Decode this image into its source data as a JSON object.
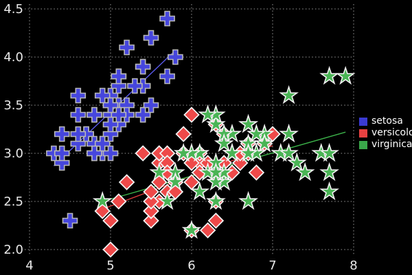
{
  "chart_data": {
    "type": "scatter",
    "title": "",
    "xlabel": "",
    "ylabel": "",
    "xlim": [
      4,
      8
    ],
    "ylim": [
      2.0,
      4.5
    ],
    "x_ticks": [
      4,
      5,
      6,
      7,
      8
    ],
    "x_tick_labels": [
      "4",
      "5",
      "6",
      "7",
      "8"
    ],
    "y_ticks": [
      2.0,
      2.5,
      3.0,
      3.5,
      4.0,
      4.5
    ],
    "y_tick_labels": [
      "2.0",
      "2.5",
      "3.0",
      "3.5",
      "4.0",
      "4.5"
    ],
    "grid": "dotted",
    "grid_color": "#9a9a9a",
    "background": "#000000",
    "tick_label_color": "#e8e8e8",
    "legend_position": "right",
    "series": [
      {
        "name": "setosa",
        "marker": "plus",
        "color": "#4646dd",
        "stroke": "#b8b8b8",
        "legend_color": "#3a3ad1",
        "points": [
          [
            5.1,
            3.5
          ],
          [
            4.9,
            3.0
          ],
          [
            4.7,
            3.2
          ],
          [
            4.6,
            3.1
          ],
          [
            5.0,
            3.6
          ],
          [
            5.4,
            3.9
          ],
          [
            4.6,
            3.4
          ],
          [
            5.0,
            3.4
          ],
          [
            4.4,
            2.9
          ],
          [
            4.9,
            3.1
          ],
          [
            5.4,
            3.7
          ],
          [
            4.8,
            3.4
          ],
          [
            4.8,
            3.0
          ],
          [
            4.3,
            3.0
          ],
          [
            5.8,
            4.0
          ],
          [
            5.7,
            4.4
          ],
          [
            5.4,
            3.9
          ],
          [
            5.1,
            3.5
          ],
          [
            5.7,
            3.8
          ],
          [
            5.1,
            3.8
          ],
          [
            5.4,
            3.4
          ],
          [
            5.1,
            3.7
          ],
          [
            4.6,
            3.6
          ],
          [
            5.1,
            3.3
          ],
          [
            4.8,
            3.4
          ],
          [
            5.0,
            3.0
          ],
          [
            5.0,
            3.4
          ],
          [
            5.2,
            3.5
          ],
          [
            5.2,
            3.4
          ],
          [
            4.7,
            3.2
          ],
          [
            4.8,
            3.1
          ],
          [
            5.4,
            3.4
          ],
          [
            5.2,
            4.1
          ],
          [
            5.5,
            4.2
          ],
          [
            4.9,
            3.1
          ],
          [
            5.0,
            3.2
          ],
          [
            5.5,
            3.5
          ],
          [
            4.9,
            3.6
          ],
          [
            4.4,
            3.0
          ],
          [
            5.1,
            3.4
          ],
          [
            5.0,
            3.5
          ],
          [
            4.5,
            2.3
          ],
          [
            4.4,
            3.2
          ],
          [
            5.0,
            3.5
          ],
          [
            5.1,
            3.8
          ],
          [
            4.8,
            3.0
          ],
          [
            5.1,
            3.8
          ],
          [
            4.6,
            3.2
          ],
          [
            5.3,
            3.7
          ],
          [
            5.0,
            3.3
          ]
        ]
      },
      {
        "name": "versicolor",
        "marker": "diamond",
        "color": "#ee4949",
        "stroke": "#f2f2f2",
        "legend_color": "#e84141",
        "points": [
          [
            7.0,
            3.2
          ],
          [
            6.4,
            3.2
          ],
          [
            6.9,
            3.1
          ],
          [
            5.5,
            2.3
          ],
          [
            6.5,
            2.8
          ],
          [
            5.7,
            2.8
          ],
          [
            6.3,
            3.3
          ],
          [
            4.9,
            2.4
          ],
          [
            6.6,
            2.9
          ],
          [
            5.2,
            2.7
          ],
          [
            5.0,
            2.0
          ],
          [
            5.9,
            3.0
          ],
          [
            6.0,
            2.2
          ],
          [
            6.1,
            2.9
          ],
          [
            5.6,
            2.9
          ],
          [
            6.7,
            3.1
          ],
          [
            5.6,
            3.0
          ],
          [
            5.8,
            2.7
          ],
          [
            6.2,
            2.2
          ],
          [
            5.6,
            2.5
          ],
          [
            5.9,
            3.2
          ],
          [
            6.1,
            2.8
          ],
          [
            6.3,
            2.5
          ],
          [
            6.1,
            2.8
          ],
          [
            6.4,
            2.9
          ],
          [
            6.6,
            3.0
          ],
          [
            6.8,
            2.8
          ],
          [
            6.7,
            3.0
          ],
          [
            6.0,
            2.9
          ],
          [
            5.7,
            2.6
          ],
          [
            5.5,
            2.4
          ],
          [
            5.5,
            2.4
          ],
          [
            5.8,
            2.7
          ],
          [
            6.0,
            2.7
          ],
          [
            5.4,
            3.0
          ],
          [
            6.0,
            3.4
          ],
          [
            6.7,
            3.1
          ],
          [
            6.3,
            2.3
          ],
          [
            5.6,
            3.0
          ],
          [
            5.5,
            2.5
          ],
          [
            5.5,
            2.6
          ],
          [
            6.1,
            3.0
          ],
          [
            5.8,
            2.6
          ],
          [
            5.0,
            2.3
          ],
          [
            5.6,
            2.7
          ],
          [
            5.7,
            3.0
          ],
          [
            5.7,
            2.9
          ],
          [
            6.2,
            2.9
          ],
          [
            5.1,
            2.5
          ],
          [
            5.7,
            2.8
          ]
        ]
      },
      {
        "name": "virginica",
        "marker": "star",
        "color": "#4ab455",
        "stroke": "#f2f2f2",
        "legend_color": "#3aa74a",
        "points": [
          [
            6.3,
            3.3
          ],
          [
            5.8,
            2.7
          ],
          [
            7.1,
            3.0
          ],
          [
            6.3,
            2.9
          ],
          [
            6.5,
            3.0
          ],
          [
            7.6,
            3.0
          ],
          [
            4.9,
            2.5
          ],
          [
            7.3,
            2.9
          ],
          [
            6.7,
            2.5
          ],
          [
            7.2,
            3.6
          ],
          [
            6.5,
            3.2
          ],
          [
            6.4,
            2.7
          ],
          [
            6.8,
            3.0
          ],
          [
            5.7,
            2.5
          ],
          [
            5.8,
            2.8
          ],
          [
            6.4,
            3.2
          ],
          [
            6.5,
            3.0
          ],
          [
            7.7,
            3.8
          ],
          [
            7.7,
            2.6
          ],
          [
            6.0,
            2.2
          ],
          [
            6.9,
            3.2
          ],
          [
            5.6,
            2.8
          ],
          [
            7.7,
            2.8
          ],
          [
            6.3,
            2.7
          ],
          [
            6.7,
            3.3
          ],
          [
            7.2,
            3.2
          ],
          [
            6.2,
            2.8
          ],
          [
            6.1,
            3.0
          ],
          [
            6.4,
            2.8
          ],
          [
            7.2,
            3.0
          ],
          [
            7.4,
            2.8
          ],
          [
            7.9,
            3.8
          ],
          [
            6.4,
            2.8
          ],
          [
            6.3,
            2.8
          ],
          [
            6.1,
            2.6
          ],
          [
            7.7,
            3.0
          ],
          [
            6.3,
            3.4
          ],
          [
            6.4,
            3.1
          ],
          [
            6.0,
            3.0
          ],
          [
            6.9,
            3.1
          ],
          [
            6.7,
            3.1
          ],
          [
            6.9,
            3.1
          ],
          [
            5.8,
            2.7
          ],
          [
            6.8,
            3.2
          ],
          [
            6.7,
            3.3
          ],
          [
            6.7,
            3.0
          ],
          [
            6.3,
            2.5
          ],
          [
            6.5,
            3.0
          ],
          [
            6.2,
            3.4
          ],
          [
            5.9,
            3.0
          ]
        ]
      }
    ],
    "trend_lines": [
      {
        "series": "setosa",
        "x1": 4.3,
        "y1": 2.87,
        "x2": 5.8,
        "y2": 4.07,
        "color": "#5a5aee"
      },
      {
        "series": "versicolor",
        "x1": 4.9,
        "y1": 2.42,
        "x2": 7.0,
        "y2": 3.08,
        "color": "#d43a3a"
      },
      {
        "series": "virginica",
        "x1": 4.9,
        "y1": 2.5,
        "x2": 7.9,
        "y2": 3.22,
        "color": "#3cb34a"
      }
    ]
  }
}
